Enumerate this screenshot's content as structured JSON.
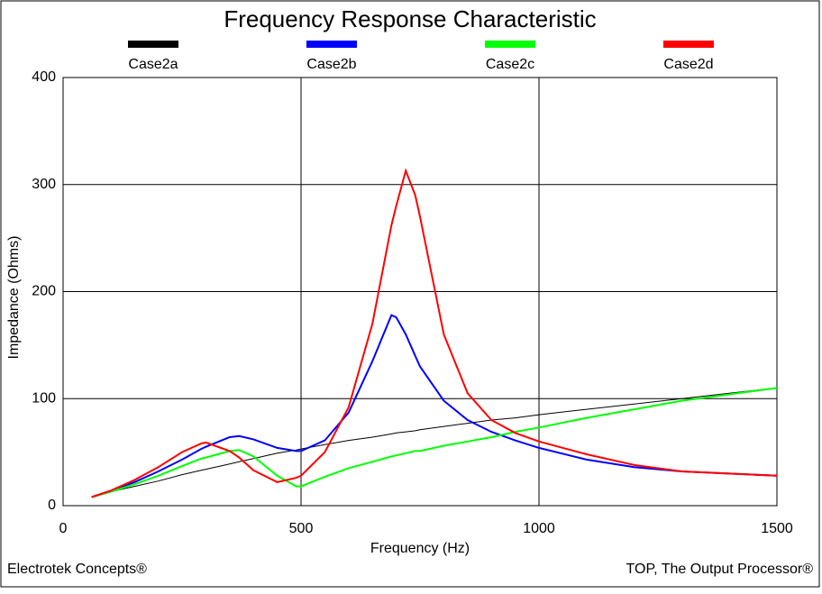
{
  "chart_data": {
    "type": "line",
    "title": "Frequency Response Characteristic",
    "x_label": "Frequency (Hz)",
    "y_label": "Impedance (Ohms)",
    "x": [
      60,
      100,
      150,
      200,
      250,
      290,
      300,
      350,
      370,
      400,
      450,
      490,
      500,
      550,
      600,
      650,
      690,
      700,
      720,
      740,
      750,
      800,
      850,
      900,
      950,
      1000,
      1100,
      1200,
      1300,
      1400,
      1500
    ],
    "series": [
      {
        "name": "Case2a",
        "color": "#000000",
        "values": [
          8,
          13,
          18,
          23,
          29,
          33,
          34,
          39,
          41,
          44,
          49,
          52,
          53,
          57,
          61,
          64,
          67,
          68,
          69,
          70,
          71,
          74,
          77,
          80,
          82,
          85,
          90,
          95,
          100,
          105,
          110
        ]
      },
      {
        "name": "Case2b",
        "color": "#0000ff",
        "values": [
          8,
          14,
          22,
          32,
          43,
          53,
          55,
          64,
          65,
          62,
          54,
          51,
          51,
          61,
          87,
          135,
          178,
          176,
          160,
          140,
          130,
          98,
          80,
          69,
          61,
          54,
          43,
          36,
          32,
          30,
          28
        ]
      },
      {
        "name": "Case2c",
        "color": "#00ff00",
        "values": [
          8,
          13,
          20,
          28,
          37,
          44,
          45,
          51,
          52,
          46,
          28,
          18,
          18,
          27,
          35,
          41,
          46,
          47,
          49,
          51,
          51,
          56,
          60,
          64,
          69,
          73,
          82,
          90,
          98,
          104,
          110
        ]
      },
      {
        "name": "Case2d",
        "color": "#ff0000",
        "values": [
          8,
          14,
          24,
          36,
          50,
          58,
          59,
          51,
          45,
          33,
          22,
          26,
          28,
          50,
          92,
          170,
          262,
          280,
          313,
          290,
          270,
          160,
          105,
          80,
          68,
          60,
          48,
          38,
          32,
          30,
          28
        ]
      }
    ],
    "xlim": [
      0,
      1500
    ],
    "xticks": [
      0,
      500,
      1000,
      1500
    ],
    "ylim": [
      0,
      400
    ],
    "yticks": [
      0,
      100,
      200,
      300,
      400
    ],
    "grid": true,
    "footer_left": "Electrotek Concepts®",
    "footer_right": "TOP, The Output Processor®"
  }
}
